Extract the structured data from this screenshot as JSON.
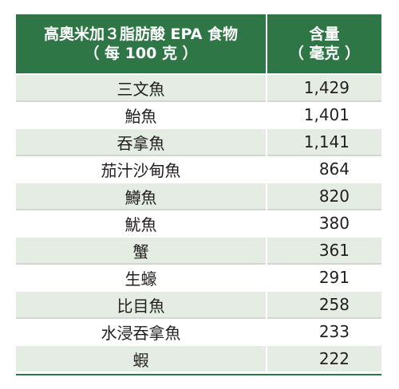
{
  "table": {
    "header": {
      "food_line1": "高奧米加３脂肪酸 EPA 食物",
      "food_line2": "（ 每 100 克 ）",
      "amount_line1": "含量",
      "amount_line2": "（ 毫克 ）"
    },
    "rows": [
      {
        "food": "三文魚",
        "amount": "1,429"
      },
      {
        "food": "鮐魚",
        "amount": "1,401"
      },
      {
        "food": "吞拿魚",
        "amount": "1,141"
      },
      {
        "food": "茄汁沙甸魚",
        "amount": "864"
      },
      {
        "food": "鱒魚",
        "amount": "820"
      },
      {
        "food": "魷魚",
        "amount": "380"
      },
      {
        "food": "蟹",
        "amount": "361"
      },
      {
        "food": "生蠔",
        "amount": "291"
      },
      {
        "food": "比目魚",
        "amount": "258"
      },
      {
        "food": "水浸吞拿魚",
        "amount": "233"
      },
      {
        "food": "蝦",
        "amount": "222"
      }
    ]
  },
  "colors": {
    "header_bg": "#2f7647",
    "row_shade": "#e4ece4"
  }
}
